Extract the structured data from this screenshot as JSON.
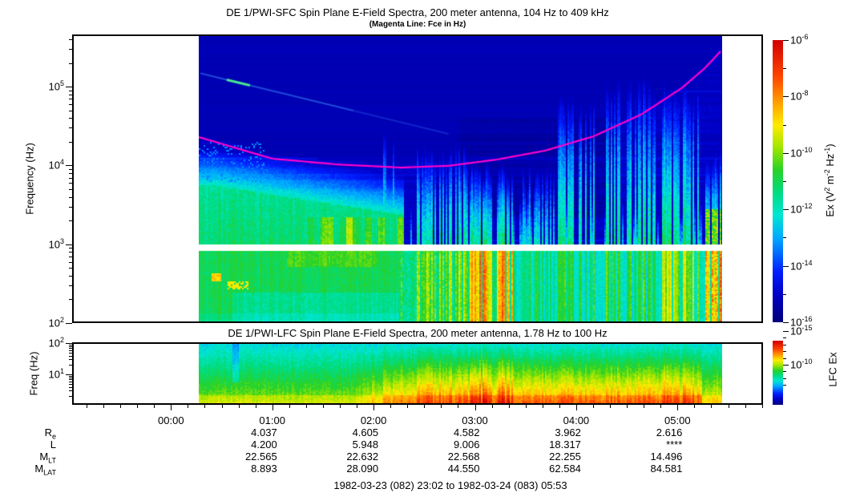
{
  "footer": "1982-03-23 (082) 23:02 to 1982-03-24 (083) 05:53",
  "time_axis": {
    "tick_labels": [
      "00:00",
      "01:00",
      "02:00",
      "03:00",
      "04:00",
      "05:00"
    ],
    "minor_tick_minutes": 10
  },
  "ephemeris": {
    "row_labels": [
      {
        "main": "R",
        "sub": "e"
      },
      {
        "main": "L",
        "sub": ""
      },
      {
        "main": "M",
        "sub": "LT"
      },
      {
        "main": "M",
        "sub": "LAT"
      }
    ],
    "columns": [
      "01:00",
      "02:00",
      "03:00",
      "04:00",
      "05:00"
    ],
    "rows": [
      {
        "name": "Re",
        "values": [
          "4.037",
          "4.605",
          "4.582",
          "3.962",
          "2.616"
        ]
      },
      {
        "name": "L",
        "values": [
          "4.200",
          "5.948",
          "9.006",
          "18.317",
          "****"
        ]
      },
      {
        "name": "MLT",
        "values": [
          "22.565",
          "22.632",
          "22.568",
          "22.255",
          "14.496"
        ]
      },
      {
        "name": "MLAT",
        "values": [
          "8.893",
          "28.090",
          "44.550",
          "62.584",
          "84.581"
        ]
      }
    ]
  },
  "chart_data": [
    {
      "id": "sfc",
      "type": "heatmap",
      "title": "DE 1/PWI-SFC  Spin Plane E-Field Spectra, 200 meter antenna, 104 Hz to 409 kHz",
      "subtitle": "(Magenta Line: Fce in Hz)",
      "ylabel": "Frequency (Hz)",
      "yscale": "log",
      "ylim_hz": [
        100,
        409000
      ],
      "ytick_exponents": [
        2,
        3,
        4,
        5
      ],
      "x_axis_hours": [
        -0.973,
        5.845
      ],
      "data_hours": [
        0.275,
        5.44
      ],
      "receiver_gap_hz": [
        850,
        1000
      ],
      "colors": {
        "fce_line": "#ff00cc",
        "background": "#ffffff"
      },
      "colormap_stops": [
        [
          0.0,
          [
            0,
            0,
            120
          ]
        ],
        [
          0.1,
          [
            0,
            0,
            200
          ]
        ],
        [
          0.18,
          [
            0,
            30,
            255
          ]
        ],
        [
          0.3,
          [
            0,
            170,
            255
          ]
        ],
        [
          0.38,
          [
            0,
            230,
            210
          ]
        ],
        [
          0.46,
          [
            0,
            220,
            130
          ]
        ],
        [
          0.54,
          [
            40,
            210,
            40
          ]
        ],
        [
          0.62,
          [
            160,
            230,
            0
          ]
        ],
        [
          0.7,
          [
            255,
            235,
            0
          ]
        ],
        [
          0.78,
          [
            255,
            160,
            0
          ]
        ],
        [
          0.87,
          [
            255,
            70,
            0
          ]
        ],
        [
          1.0,
          [
            210,
            0,
            0
          ]
        ]
      ],
      "colorbar": {
        "range_exponents": [
          -16,
          -6
        ],
        "labeled_exponents": [
          -6,
          -8,
          -10,
          -12,
          -14,
          -16
        ],
        "label_parts": [
          {
            "t": "Ex (V"
          },
          {
            "s": "2"
          },
          {
            "t": " m"
          },
          {
            "s": "-2"
          },
          {
            "t": " Hz"
          },
          {
            "s": "-1"
          },
          {
            "t": ")"
          }
        ]
      },
      "fce_line_hz": [
        [
          0.27,
          23000
        ],
        [
          1.0,
          12200
        ],
        [
          1.64,
          10300
        ],
        [
          2.27,
          9400
        ],
        [
          2.74,
          9900
        ],
        [
          3.22,
          11900
        ],
        [
          3.69,
          15400
        ],
        [
          4.17,
          23400
        ],
        [
          4.64,
          44200
        ],
        [
          5.04,
          95500
        ],
        [
          5.27,
          171800
        ],
        [
          5.44,
          294000
        ]
      ],
      "model": {
        "seed": 1982,
        "row_stripe_seed": 82,
        "clusters": [
          {
            "t0": 1.92,
            "t1": 2.35,
            "dens": 0.5,
            "smin": 0.3,
            "smax": 0.7,
            "hmax": 4.0,
            "low": 0.9
          },
          {
            "t0": 2.08,
            "t1": 2.22,
            "dens": 0.35,
            "smin": 0.6,
            "smax": 0.9,
            "hmax": 4.6,
            "low": 0.8
          },
          {
            "t0": 2.42,
            "t1": 2.95,
            "dens": 0.6,
            "smin": 0.4,
            "smax": 0.9,
            "hmax": 4.4,
            "low": 1.0
          },
          {
            "t0": 2.95,
            "t1": 3.38,
            "dens": 0.8,
            "smin": 0.5,
            "smax": 1.0,
            "hmax": 4.15,
            "low": 1.8
          },
          {
            "t0": 3.42,
            "t1": 3.78,
            "dens": 0.5,
            "smin": 0.3,
            "smax": 0.7,
            "hmax": 4.1,
            "low": 0.9
          },
          {
            "t0": 3.82,
            "t1": 4.22,
            "dens": 0.55,
            "smin": 0.4,
            "smax": 0.85,
            "hmax": 5.1,
            "low": 0.8
          },
          {
            "t0": 4.3,
            "t1": 4.78,
            "dens": 0.6,
            "smin": 0.4,
            "smax": 0.9,
            "hmax": 5.35,
            "low": 0.9
          },
          {
            "t0": 4.85,
            "t1": 5.22,
            "dens": 0.7,
            "smin": 0.5,
            "smax": 1.0,
            "hmax": 5.25,
            "low": 1.2
          },
          {
            "t0": 5.26,
            "t1": 5.44,
            "dens": 0.9,
            "smin": 0.5,
            "smax": 0.95,
            "hmax": 4.35,
            "low": 1.5,
            "hotmid": 1
          },
          {
            "t0": 1.9,
            "t1": 5.44,
            "dens": 0.18,
            "smin": 0.15,
            "smax": 0.35,
            "hmax": 3.7,
            "low": 0.6
          }
        ],
        "whistler_trace": {
          "t": [
            0.29,
            2.74
          ],
          "logf": [
            5.17,
            4.4
          ],
          "bright_t": [
            0.55,
            0.78
          ]
        }
      }
    },
    {
      "id": "lfc",
      "type": "heatmap",
      "title": "DE 1/PWI-LFC  Spin Plane E-Field Spectra, 200 meter antenna, 1.78 Hz to 100 Hz",
      "ylabel": "Freq (Hz)",
      "yscale": "log",
      "ylim_hz": [
        1.78,
        100
      ],
      "ytick_exponents": [
        1,
        2
      ],
      "colorbar": {
        "label": "LFC Ex",
        "labeled_exponents": [
          -10,
          -15
        ]
      },
      "model": {
        "seed": 83
      }
    }
  ]
}
